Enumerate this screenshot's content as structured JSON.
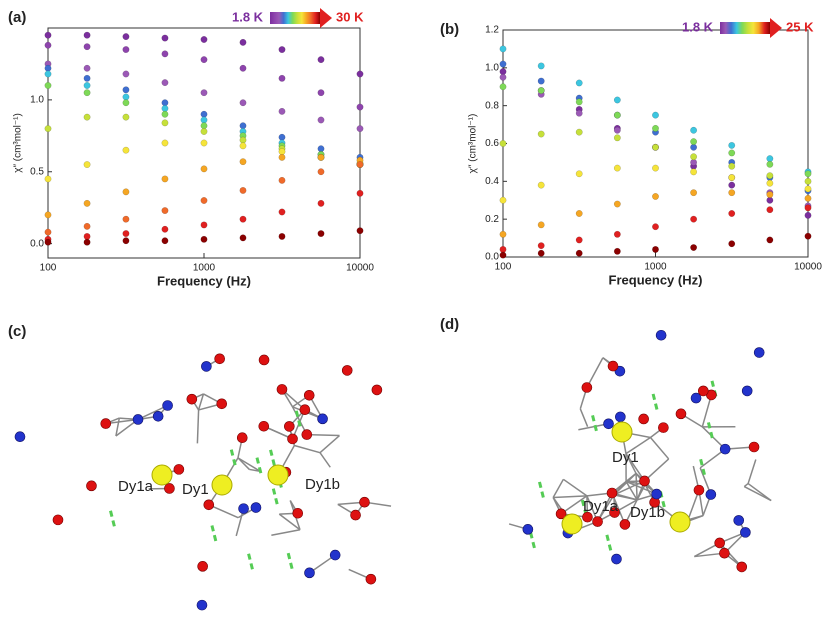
{
  "panel_labels": [
    "(a)",
    "(b)",
    "(c)",
    "(d)"
  ],
  "chart_data": [
    {
      "type": "scatter",
      "ylabel": "χ″ (cm³mol⁻¹)",
      "xlabel": "Frequency (Hz)",
      "log_x": true,
      "colorbar_labels": [
        "1.8 K",
        "30 K"
      ],
      "x": [
        100,
        178,
        316,
        562,
        1000,
        1778,
        3162,
        5623,
        10000
      ],
      "xlim": [
        100,
        10000
      ],
      "xticks": [
        100,
        1000,
        10000
      ],
      "ylim": [
        -0.1,
        1.5
      ],
      "yticks": [
        {
          "value": 0,
          "label": "0.0"
        },
        {
          "value": 0.5,
          "label": "0.5"
        },
        {
          "value": 1,
          "label": "1.0"
        }
      ],
      "series": [
        {
          "color": "#7b2f9e",
          "values": [
            1.45,
            1.45,
            1.44,
            1.43,
            1.42,
            1.4,
            1.35,
            1.28,
            1.18
          ]
        },
        {
          "color": "#8e44ad",
          "values": [
            1.38,
            1.37,
            1.35,
            1.32,
            1.28,
            1.22,
            1.15,
            1.05,
            0.95
          ]
        },
        {
          "color": "#9b59b6",
          "values": [
            1.25,
            1.22,
            1.18,
            1.12,
            1.05,
            0.98,
            0.92,
            0.86,
            0.8
          ]
        },
        {
          "color": "#3f6fd1",
          "values": [
            1.22,
            1.15,
            1.07,
            0.98,
            0.9,
            0.82,
            0.74,
            0.66,
            0.6
          ]
        },
        {
          "color": "#3cc6e0",
          "values": [
            1.18,
            1.1,
            1.02,
            0.94,
            0.86,
            0.78,
            0.7,
            0.62,
            0.55
          ]
        },
        {
          "color": "#7ed957",
          "values": [
            1.1,
            1.05,
            0.98,
            0.9,
            0.82,
            0.75,
            0.68,
            0.62,
            0.55
          ]
        },
        {
          "color": "#c6e03a",
          "values": [
            0.8,
            0.88,
            0.88,
            0.84,
            0.78,
            0.72,
            0.66,
            0.6,
            0.55
          ]
        },
        {
          "color": "#f5e43a",
          "values": [
            0.45,
            0.55,
            0.65,
            0.7,
            0.7,
            0.68,
            0.64,
            0.6,
            0.56
          ]
        },
        {
          "color": "#f5a623",
          "values": [
            0.2,
            0.28,
            0.36,
            0.45,
            0.52,
            0.57,
            0.6,
            0.6,
            0.58
          ]
        },
        {
          "color": "#f06a2a",
          "values": [
            0.08,
            0.12,
            0.17,
            0.23,
            0.3,
            0.37,
            0.44,
            0.5,
            0.55
          ]
        },
        {
          "color": "#e02020",
          "values": [
            0.03,
            0.05,
            0.07,
            0.1,
            0.13,
            0.17,
            0.22,
            0.28,
            0.35
          ]
        },
        {
          "color": "#8b0000",
          "values": [
            0.01,
            0.01,
            0.02,
            0.02,
            0.03,
            0.04,
            0.05,
            0.07,
            0.09
          ]
        }
      ]
    },
    {
      "type": "scatter",
      "ylabel": "χ″ (cm³mol⁻¹)",
      "xlabel": "Frequency (Hz)",
      "log_x": true,
      "colorbar_labels": [
        "1.8 K",
        "25 K"
      ],
      "x": [
        100,
        178,
        316,
        562,
        1000,
        1778,
        3162,
        5623,
        10000
      ],
      "xlim": [
        100,
        10000
      ],
      "xticks": [
        100,
        1000,
        10000
      ],
      "ylim": [
        0,
        1.2
      ],
      "yticks": [
        {
          "value": 0,
          "label": "0.0"
        },
        {
          "value": 0.2,
          "label": "0.2"
        },
        {
          "value": 0.4,
          "label": "0.4"
        },
        {
          "value": 0.6,
          "label": "0.6"
        },
        {
          "value": 0.8,
          "label": "0.8"
        },
        {
          "value": 1,
          "label": "1.0"
        },
        {
          "value": 1.2,
          "label": "1.2"
        }
      ],
      "series": [
        {
          "color": "#7b2f9e",
          "values": [
            0.98,
            0.88,
            0.78,
            0.68,
            0.58,
            0.48,
            0.38,
            0.3,
            0.22
          ]
        },
        {
          "color": "#9b59b6",
          "values": [
            0.95,
            0.86,
            0.76,
            0.67,
            0.58,
            0.5,
            0.42,
            0.34,
            0.27
          ]
        },
        {
          "color": "#3f6fd1",
          "values": [
            1.02,
            0.93,
            0.84,
            0.75,
            0.66,
            0.58,
            0.5,
            0.42,
            0.35
          ]
        },
        {
          "color": "#3cc6e0",
          "values": [
            1.1,
            1.01,
            0.92,
            0.83,
            0.75,
            0.67,
            0.59,
            0.52,
            0.45
          ]
        },
        {
          "color": "#7ed957",
          "values": [
            0.9,
            0.88,
            0.82,
            0.75,
            0.68,
            0.61,
            0.55,
            0.49,
            0.44
          ]
        },
        {
          "color": "#c6e03a",
          "values": [
            0.6,
            0.65,
            0.66,
            0.63,
            0.58,
            0.53,
            0.48,
            0.43,
            0.4
          ]
        },
        {
          "color": "#f5e43a",
          "values": [
            0.3,
            0.38,
            0.44,
            0.47,
            0.47,
            0.45,
            0.42,
            0.39,
            0.36
          ]
        },
        {
          "color": "#f5a623",
          "values": [
            0.12,
            0.17,
            0.23,
            0.28,
            0.32,
            0.34,
            0.34,
            0.33,
            0.31
          ]
        },
        {
          "color": "#e02020",
          "values": [
            0.04,
            0.06,
            0.09,
            0.12,
            0.16,
            0.2,
            0.23,
            0.25,
            0.26
          ]
        },
        {
          "color": "#8b0000",
          "values": [
            0.01,
            0.02,
            0.02,
            0.03,
            0.04,
            0.05,
            0.07,
            0.09,
            0.11
          ]
        }
      ]
    }
  ],
  "structures": [
    {
      "atom_labels": [
        "Dy1a",
        "Dy1",
        "Dy1b"
      ]
    },
    {
      "atom_labels": [
        "Dy1",
        "Dy1a",
        "Dy1b"
      ]
    }
  ]
}
